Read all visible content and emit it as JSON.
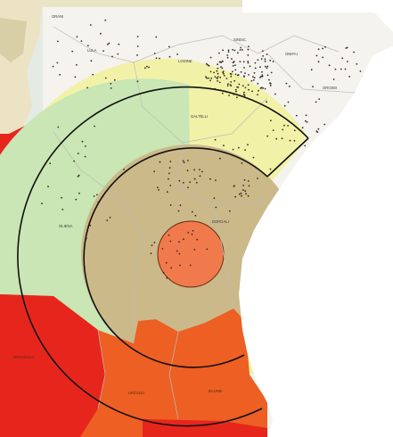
{
  "map": {
    "labels": {
      "orani": "ORANI",
      "lula": "LULA",
      "lodine": "LODINE",
      "siniscola": "SINISC.",
      "orosei_top": "OROSEI",
      "onifai": "ONIFAI",
      "galtelli": "GALTELLI",
      "oliena": "OLIENA",
      "dorgali": "DORGALI",
      "urzulei": "URZULEI",
      "baunei": "BAUNEI",
      "orgosolo": "ORGOSOLO"
    },
    "colors": {
      "outer_ring": "#f2f1a8",
      "outer_ring_west": "#c9e6b4",
      "middle_zone": "#cbb98a",
      "center_zone": "#f07a4c",
      "land": "#f4f3ee",
      "sea": "#ffffff",
      "lagoon": "#bfe1dc",
      "hazard_orange": "#ee5f23",
      "hazard_red": "#e6261d",
      "points": "#3a2a20",
      "circle_stroke": "#111111"
    }
  }
}
